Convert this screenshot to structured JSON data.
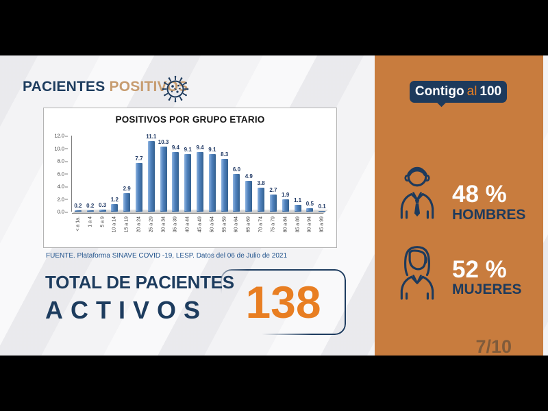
{
  "header": {
    "title_strong": "PACIENTES",
    "title_light": "POSITIVOS"
  },
  "chart_data": {
    "type": "bar",
    "title": "POSITIVOS POR GRUPO ETARIO",
    "categories": [
      "< a 1a.",
      "1 a 4",
      "5 a 9",
      "10 a 14",
      "15 a 19",
      "20 a 24",
      "25 a 29",
      "30 a 34",
      "35 a 39",
      "40 a 44",
      "45 a 49",
      "50 a 54",
      "55 a 59",
      "60 a 64",
      "65 a 69",
      "70 a 74",
      "75 a 79",
      "80 a 84",
      "85 a 89",
      "90 a 94",
      "95 a 99"
    ],
    "values": [
      0.2,
      0.2,
      0.3,
      1.2,
      2.9,
      7.7,
      11.1,
      10.3,
      9.4,
      9.1,
      9.4,
      9.1,
      8.3,
      6.0,
      4.9,
      3.8,
      2.7,
      1.9,
      1.1,
      0.5,
      0.1
    ],
    "yticks": [
      0.0,
      2.0,
      4.0,
      6.0,
      8.0,
      10.0,
      12.0
    ],
    "ylim": [
      0,
      12
    ],
    "xlabel": "",
    "ylabel": "",
    "grid": false,
    "legend": false,
    "bar_color": "#4f81bd"
  },
  "source": "FUENTE. Plataforma SINAVE COVID -19, LESP. Datos del 06 de Julio de 2021",
  "total": {
    "line1": "TOTAL DE PACIENTES",
    "line2": "ACTIVOS",
    "value": "138"
  },
  "sidebar": {
    "logo": {
      "word1": "Contigo",
      "word2": "al",
      "word3": "100"
    },
    "stats": [
      {
        "icon": "man-icon",
        "percent": "48 %",
        "label": "HOMBRES"
      },
      {
        "icon": "woman-icon",
        "percent": "52 %",
        "label": "MUJERES"
      }
    ],
    "page_indicator": "7/10"
  },
  "colors": {
    "navy": "#1d3a5c",
    "panel_orange": "#c87c3e",
    "accent_orange": "#e87e22",
    "bar_blue": "#4f81bd",
    "title_tan": "#c79c6f"
  }
}
